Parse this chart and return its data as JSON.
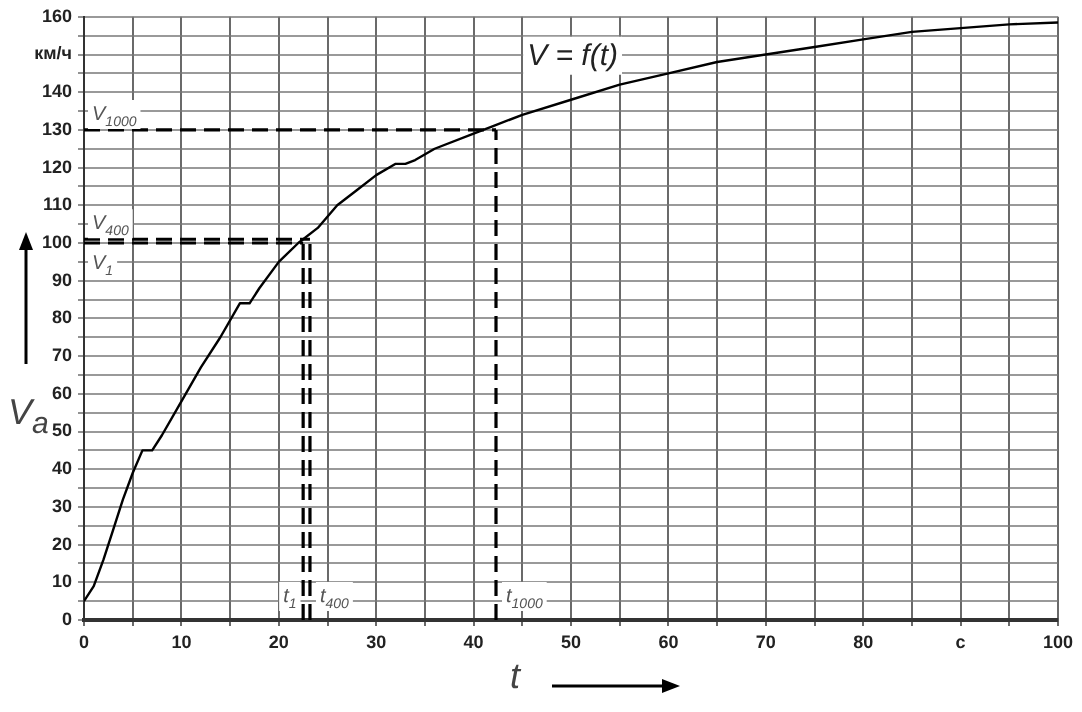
{
  "chart_data": {
    "type": "line",
    "xlabel": "t",
    "ylabel": "V$_{a}$",
    "x": [
      0,
      1,
      2,
      3,
      4,
      5,
      6,
      7,
      8,
      10,
      12,
      14,
      16,
      17,
      18,
      20,
      22,
      24,
      26,
      28,
      30,
      32,
      33,
      34,
      36,
      40,
      42,
      45,
      50,
      55,
      60,
      65,
      70,
      75,
      80,
      85,
      90,
      95,
      100
    ],
    "series": [
      {
        "color": "#000000",
        "values": [
          5,
          9,
          16,
          24,
          32,
          39,
          45,
          45,
          49,
          58,
          67,
          75,
          84,
          84,
          88,
          95,
          100,
          104,
          110,
          114,
          118,
          121,
          121,
          122,
          125,
          129,
          131,
          134,
          138,
          142,
          145,
          148,
          150,
          152,
          154,
          156,
          157,
          158,
          158.5
        ]
      }
    ],
    "xlim": [
      0,
      100
    ],
    "xticks": [
      0,
      {
        "value": 5,
        "label": null
      },
      10,
      {
        "value": 15,
        "label": null
      },
      20,
      {
        "value": 25,
        "label": null
      },
      30,
      {
        "value": 35,
        "label": null
      },
      40,
      {
        "value": 45,
        "label": null
      },
      50,
      {
        "value": 55,
        "label": null
      },
      60,
      {
        "value": 65,
        "label": null
      },
      70,
      {
        "value": 75,
        "label": null
      },
      80,
      {
        "value": 85,
        "label": null
      },
      {
        "value": 90,
        "label": "с"
      },
      {
        "value": 95,
        "label": null
      },
      100
    ],
    "ylim": [
      0,
      160
    ],
    "yticks": [
      0,
      {
        "value": 5,
        "label": null
      },
      10,
      {
        "value": 15,
        "label": null
      },
      20,
      {
        "value": 25,
        "label": null
      },
      30,
      {
        "value": 35,
        "label": null
      },
      40,
      {
        "value": 45,
        "label": null
      },
      50,
      {
        "value": 55,
        "label": null
      },
      60,
      {
        "value": 65,
        "label": null
      },
      70,
      {
        "value": 75,
        "label": null
      },
      80,
      {
        "value": 85,
        "label": null
      },
      90,
      {
        "value": 95,
        "label": null
      },
      100,
      {
        "value": 105,
        "label": null
      },
      110,
      {
        "value": 115,
        "label": null
      },
      120,
      {
        "value": 125,
        "label": null
      },
      130,
      {
        "value": 135,
        "label": null
      },
      140,
      {
        "value": 145,
        "label": null
      },
      {
        "value": 150,
        "label": "км/ч"
      },
      {
        "value": 155,
        "label": null
      },
      160
    ],
    "ref_lines": [
      {
        "axis": "y",
        "value": 130,
        "label": "V$_{1000}$",
        "line_style": "dashed"
      },
      {
        "axis": "y",
        "value": 101,
        "label": "V$_{400}$",
        "line_style": "dashed"
      },
      {
        "axis": "y",
        "value": 100,
        "label": "V$_{1}$",
        "line_style": "dashed"
      },
      {
        "axis": "x",
        "value": 42.3,
        "label": "t$_{1000}$",
        "line_style": "dashed"
      },
      {
        "axis": "x",
        "value": 23.2,
        "label": "t$_{400}$",
        "line_style": "dashed"
      },
      {
        "axis": "x",
        "value": 22.5,
        "label": "t$_{1}$",
        "line_style": "dashed"
      }
    ],
    "annotations": [
      "V = f(t)"
    ],
    "grid": true,
    "marker": "none",
    "line_style": "solid",
    "legend": false
  }
}
